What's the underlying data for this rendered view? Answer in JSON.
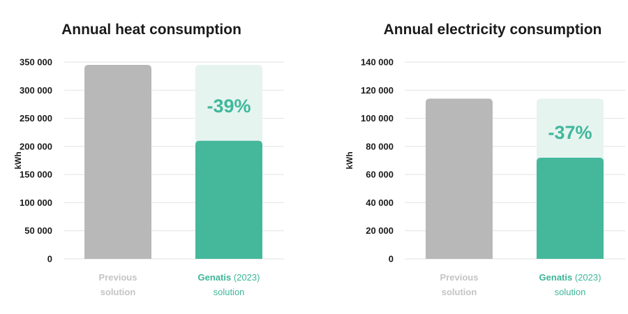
{
  "chart_data": [
    {
      "type": "bar",
      "title": "Annual heat consumption",
      "ylabel": "kWh",
      "ylim": [
        0,
        350000
      ],
      "yticks": [
        "0",
        "50 000",
        "100 000",
        "150 000",
        "200 000",
        "250 000",
        "300 000",
        "350 000"
      ],
      "ytick_values": [
        0,
        50000,
        100000,
        150000,
        200000,
        250000,
        300000,
        350000
      ],
      "categories": [
        {
          "line1": "Previous",
          "line2": "solution"
        },
        {
          "line1_bold": "Genatis",
          "line1_rest": " (2023)",
          "line2": "solution"
        }
      ],
      "values": [
        345000,
        210000
      ],
      "reference_value": 345000,
      "annotation": "-39%",
      "grid": true,
      "colors": {
        "previous": "#b8b8b8",
        "new": "#45b89c",
        "ghost": "#e6f4f0",
        "accent_text": "#3fb89b"
      }
    },
    {
      "type": "bar",
      "title": "Annual electricity consumption",
      "ylabel": "kWh",
      "ylim": [
        0,
        140000
      ],
      "yticks": [
        "0",
        "20 000",
        "40 000",
        "60 000",
        "80 000",
        "100 000",
        "120 000",
        "140 000"
      ],
      "ytick_values": [
        0,
        20000,
        40000,
        60000,
        80000,
        100000,
        120000,
        140000
      ],
      "categories": [
        {
          "line1": "Previous",
          "line2": "solution"
        },
        {
          "line1_bold": "Genatis",
          "line1_rest": " (2023)",
          "line2": "solution"
        }
      ],
      "values": [
        114000,
        72000
      ],
      "reference_value": 114000,
      "annotation": "-37%",
      "grid": true,
      "colors": {
        "previous": "#b8b8b8",
        "new": "#45b89c",
        "ghost": "#e6f4f0",
        "accent_text": "#3fb89b"
      }
    }
  ]
}
